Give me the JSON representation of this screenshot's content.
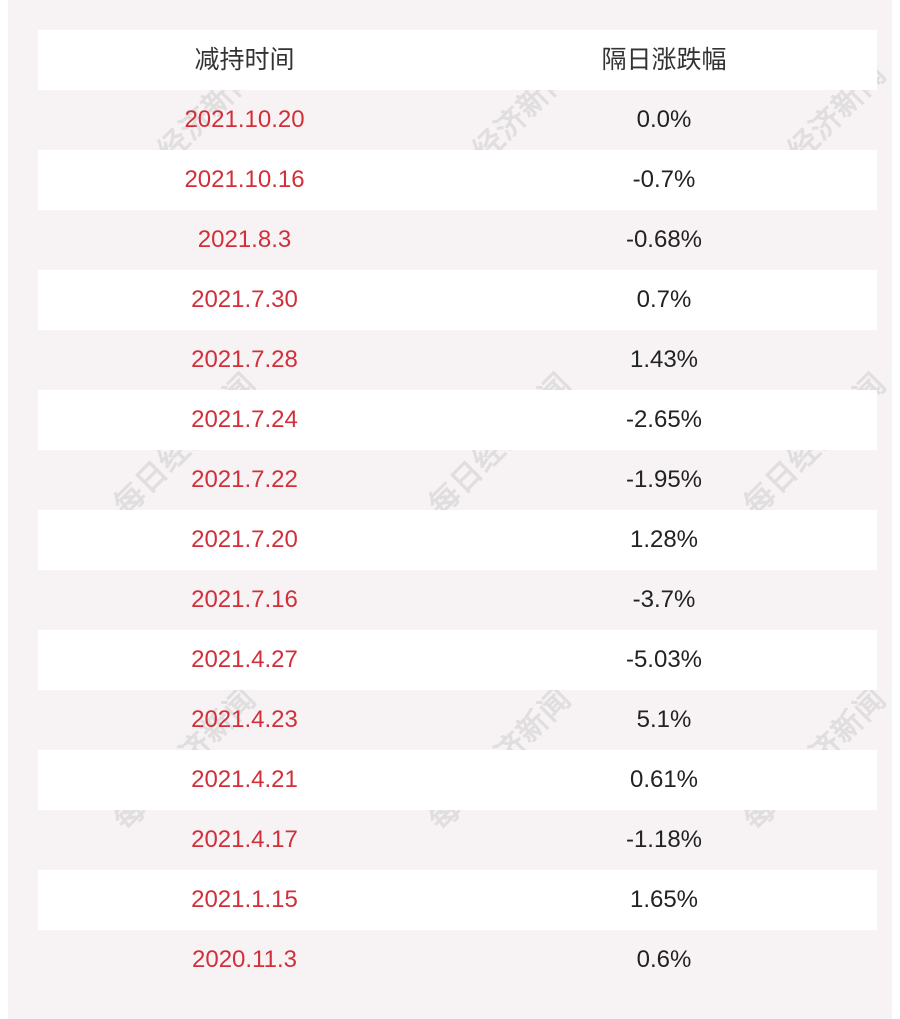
{
  "table": {
    "headers": [
      "减持时间",
      "隔日涨跌幅"
    ],
    "rows": [
      {
        "date": "2021.10.20",
        "change": "0.0%"
      },
      {
        "date": "2021.10.16",
        "change": "-0.7%"
      },
      {
        "date": "2021.8.3",
        "change": "-0.68%"
      },
      {
        "date": "2021.7.30",
        "change": "0.7%"
      },
      {
        "date": "2021.7.28",
        "change": "1.43%"
      },
      {
        "date": "2021.7.24",
        "change": "-2.65%"
      },
      {
        "date": "2021.7.22",
        "change": "-1.95%"
      },
      {
        "date": "2021.7.20",
        "change": "1.28%"
      },
      {
        "date": "2021.7.16",
        "change": "-3.7%"
      },
      {
        "date": "2021.4.27",
        "change": "-5.03%"
      },
      {
        "date": "2021.4.23",
        "change": "5.1%"
      },
      {
        "date": "2021.4.21",
        "change": "0.61%"
      },
      {
        "date": "2021.4.17",
        "change": "-1.18%"
      },
      {
        "date": "2021.1.15",
        "change": "1.65%"
      },
      {
        "date": "2020.11.3",
        "change": "0.6%"
      }
    ]
  },
  "watermark": "每日经济新闻",
  "colors": {
    "date_text": "#d1303b",
    "value_text": "#222222",
    "stripe": "#f7f3f4"
  }
}
